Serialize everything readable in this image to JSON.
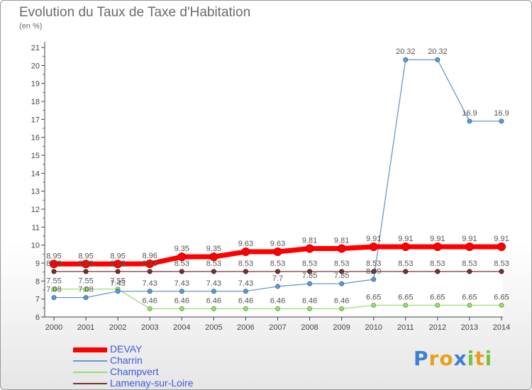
{
  "chart_data": {
    "type": "line",
    "title": "Evolution du Taux de Taxe d'Habitation",
    "subtitle": "(en %)",
    "xlabel": "",
    "ylabel": "",
    "x": [
      "2000",
      "2001",
      "2002",
      "2003",
      "2004",
      "2005",
      "2006",
      "2007",
      "2008",
      "2009",
      "2010",
      "2011",
      "2012",
      "2013",
      "2014"
    ],
    "ylim": [
      6,
      21
    ],
    "yticks": [
      "6",
      "7",
      "8",
      "9",
      "10",
      "11",
      "12",
      "13",
      "14",
      "15",
      "16",
      "17",
      "18",
      "19",
      "20",
      "21"
    ],
    "grid": false,
    "legend_position": "bottom-left",
    "series": [
      {
        "name": "DEVAY",
        "color": "#ff0000",
        "values": [
          8.95,
          8.95,
          8.95,
          8.96,
          9.35,
          9.35,
          9.63,
          9.63,
          9.81,
          9.81,
          9.91,
          9.91,
          9.91,
          9.91,
          9.91
        ],
        "labels": [
          "8.95",
          "8.95",
          "8.95",
          "8.96",
          "9.35",
          "9.35",
          "9.63",
          "9.63",
          "9.81",
          "9.81",
          "9.91",
          "9.91",
          "9.91",
          "9.91",
          "9.91"
        ]
      },
      {
        "name": "Charrin",
        "color": "#6699cc",
        "values": [
          7.08,
          7.08,
          7.43,
          7.43,
          7.43,
          7.43,
          7.43,
          7.7,
          7.85,
          7.85,
          8.09,
          20.32,
          20.32,
          16.9,
          16.9
        ],
        "labels": [
          "7.08",
          "7.08",
          "7.43",
          "7.43",
          "7.43",
          "7.43",
          "7.43",
          "7.7",
          "7.85",
          "7.85",
          "8.09",
          "20.32",
          "20.32",
          "16.9",
          "16.9"
        ]
      },
      {
        "name": "Champvert",
        "color": "#99dd77",
        "values": [
          7.55,
          7.55,
          7.55,
          6.46,
          6.46,
          6.46,
          6.46,
          6.46,
          6.46,
          6.46,
          6.65,
          6.65,
          6.65,
          6.65,
          6.65
        ],
        "labels": [
          "7.55",
          "7.55",
          "7.55",
          "6.46",
          "6.46",
          "6.46",
          "6.46",
          "6.46",
          "6.46",
          "6.46",
          "6.65",
          "6.65",
          "6.65",
          "6.65",
          "6.65"
        ]
      },
      {
        "name": "Lamenay-sur-Loire",
        "color": "#773333",
        "values": [
          8.53,
          8.53,
          8.53,
          8.53,
          8.53,
          8.53,
          8.53,
          8.53,
          8.53,
          8.53,
          8.53,
          8.53,
          8.53,
          8.53,
          8.53
        ],
        "labels": [
          "8.53",
          "8.53",
          "8.53",
          "8.53",
          "8.53",
          "8.53",
          "8.53",
          "8.53",
          "8.53",
          "8.53",
          "8.53",
          "8.53",
          "8.53",
          "8.53",
          "8.53"
        ]
      }
    ]
  },
  "logo": {
    "letters": [
      "P",
      "r",
      "o",
      "x",
      "i",
      "t",
      "i"
    ]
  }
}
